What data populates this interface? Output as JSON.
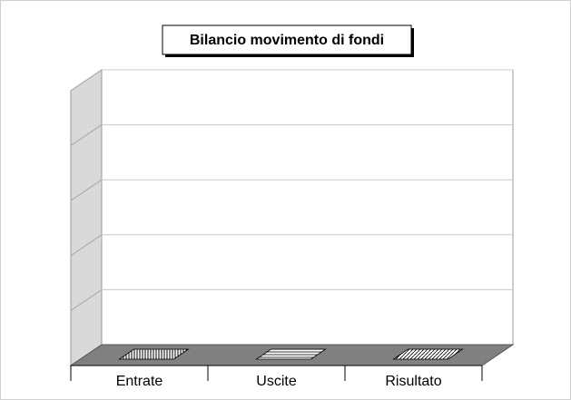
{
  "chart_data": {
    "type": "bar3d",
    "title": "Bilancio movimento di fondi",
    "categories": [
      "Entrate",
      "Uscite",
      "Risultato"
    ],
    "values": [
      0,
      0,
      0
    ],
    "ylim": [
      0,
      5
    ],
    "yticks": [
      0,
      1,
      2,
      3,
      4,
      5
    ],
    "grid": true,
    "tick_labels": false,
    "wall_color": "#d9d9d9",
    "floor_color": "#808080"
  }
}
